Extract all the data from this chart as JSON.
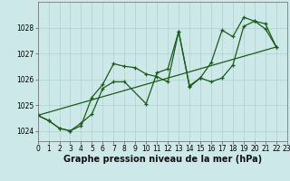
{
  "xlabel": "Graphe pression niveau de la mer (hPa)",
  "ylabel": "",
  "bg_color": "#cde8e8",
  "grid_color": "#b0d0d0",
  "line_color": "#1a5c1a",
  "line1": [
    [
      0,
      1024.6
    ],
    [
      1,
      1024.4
    ],
    [
      2,
      1024.1
    ],
    [
      3,
      1024.0
    ],
    [
      4,
      1024.2
    ],
    [
      5,
      1025.3
    ],
    [
      6,
      1025.8
    ],
    [
      7,
      1026.6
    ],
    [
      8,
      1026.5
    ],
    [
      9,
      1026.45
    ],
    [
      10,
      1026.2
    ],
    [
      11,
      1026.1
    ],
    [
      12,
      1025.9
    ],
    [
      13,
      1027.85
    ],
    [
      14,
      1025.7
    ],
    [
      15,
      1026.05
    ],
    [
      16,
      1025.9
    ],
    [
      17,
      1026.05
    ],
    [
      18,
      1026.55
    ],
    [
      19,
      1028.05
    ],
    [
      20,
      1028.25
    ],
    [
      21,
      1027.95
    ],
    [
      22,
      1027.25
    ]
  ],
  "line2": [
    [
      0,
      1024.6
    ],
    [
      1,
      1024.4
    ],
    [
      2,
      1024.1
    ],
    [
      3,
      1024.0
    ],
    [
      4,
      1024.3
    ],
    [
      5,
      1024.65
    ],
    [
      6,
      1025.65
    ],
    [
      7,
      1025.9
    ],
    [
      8,
      1025.9
    ],
    [
      10,
      1025.05
    ],
    [
      11,
      1026.25
    ],
    [
      12,
      1026.4
    ],
    [
      13,
      1027.85
    ],
    [
      14,
      1025.75
    ],
    [
      15,
      1026.05
    ],
    [
      16,
      1026.65
    ],
    [
      17,
      1027.9
    ],
    [
      18,
      1027.65
    ],
    [
      19,
      1028.4
    ],
    [
      20,
      1028.25
    ],
    [
      21,
      1028.15
    ],
    [
      22,
      1027.25
    ]
  ],
  "line3": [
    [
      0,
      1024.6
    ],
    [
      22,
      1027.25
    ]
  ],
  "xlim": [
    0,
    23
  ],
  "ylim": [
    1023.6,
    1029.0
  ],
  "xticks": [
    0,
    1,
    2,
    3,
    4,
    5,
    6,
    7,
    8,
    9,
    10,
    11,
    12,
    13,
    14,
    15,
    16,
    17,
    18,
    19,
    20,
    21,
    22,
    23
  ],
  "yticks": [
    1024,
    1025,
    1026,
    1027,
    1028
  ],
  "tick_fontsize": 5.5,
  "label_fontsize": 7.0,
  "fig_width": 3.2,
  "fig_height": 2.0,
  "dpi": 100
}
